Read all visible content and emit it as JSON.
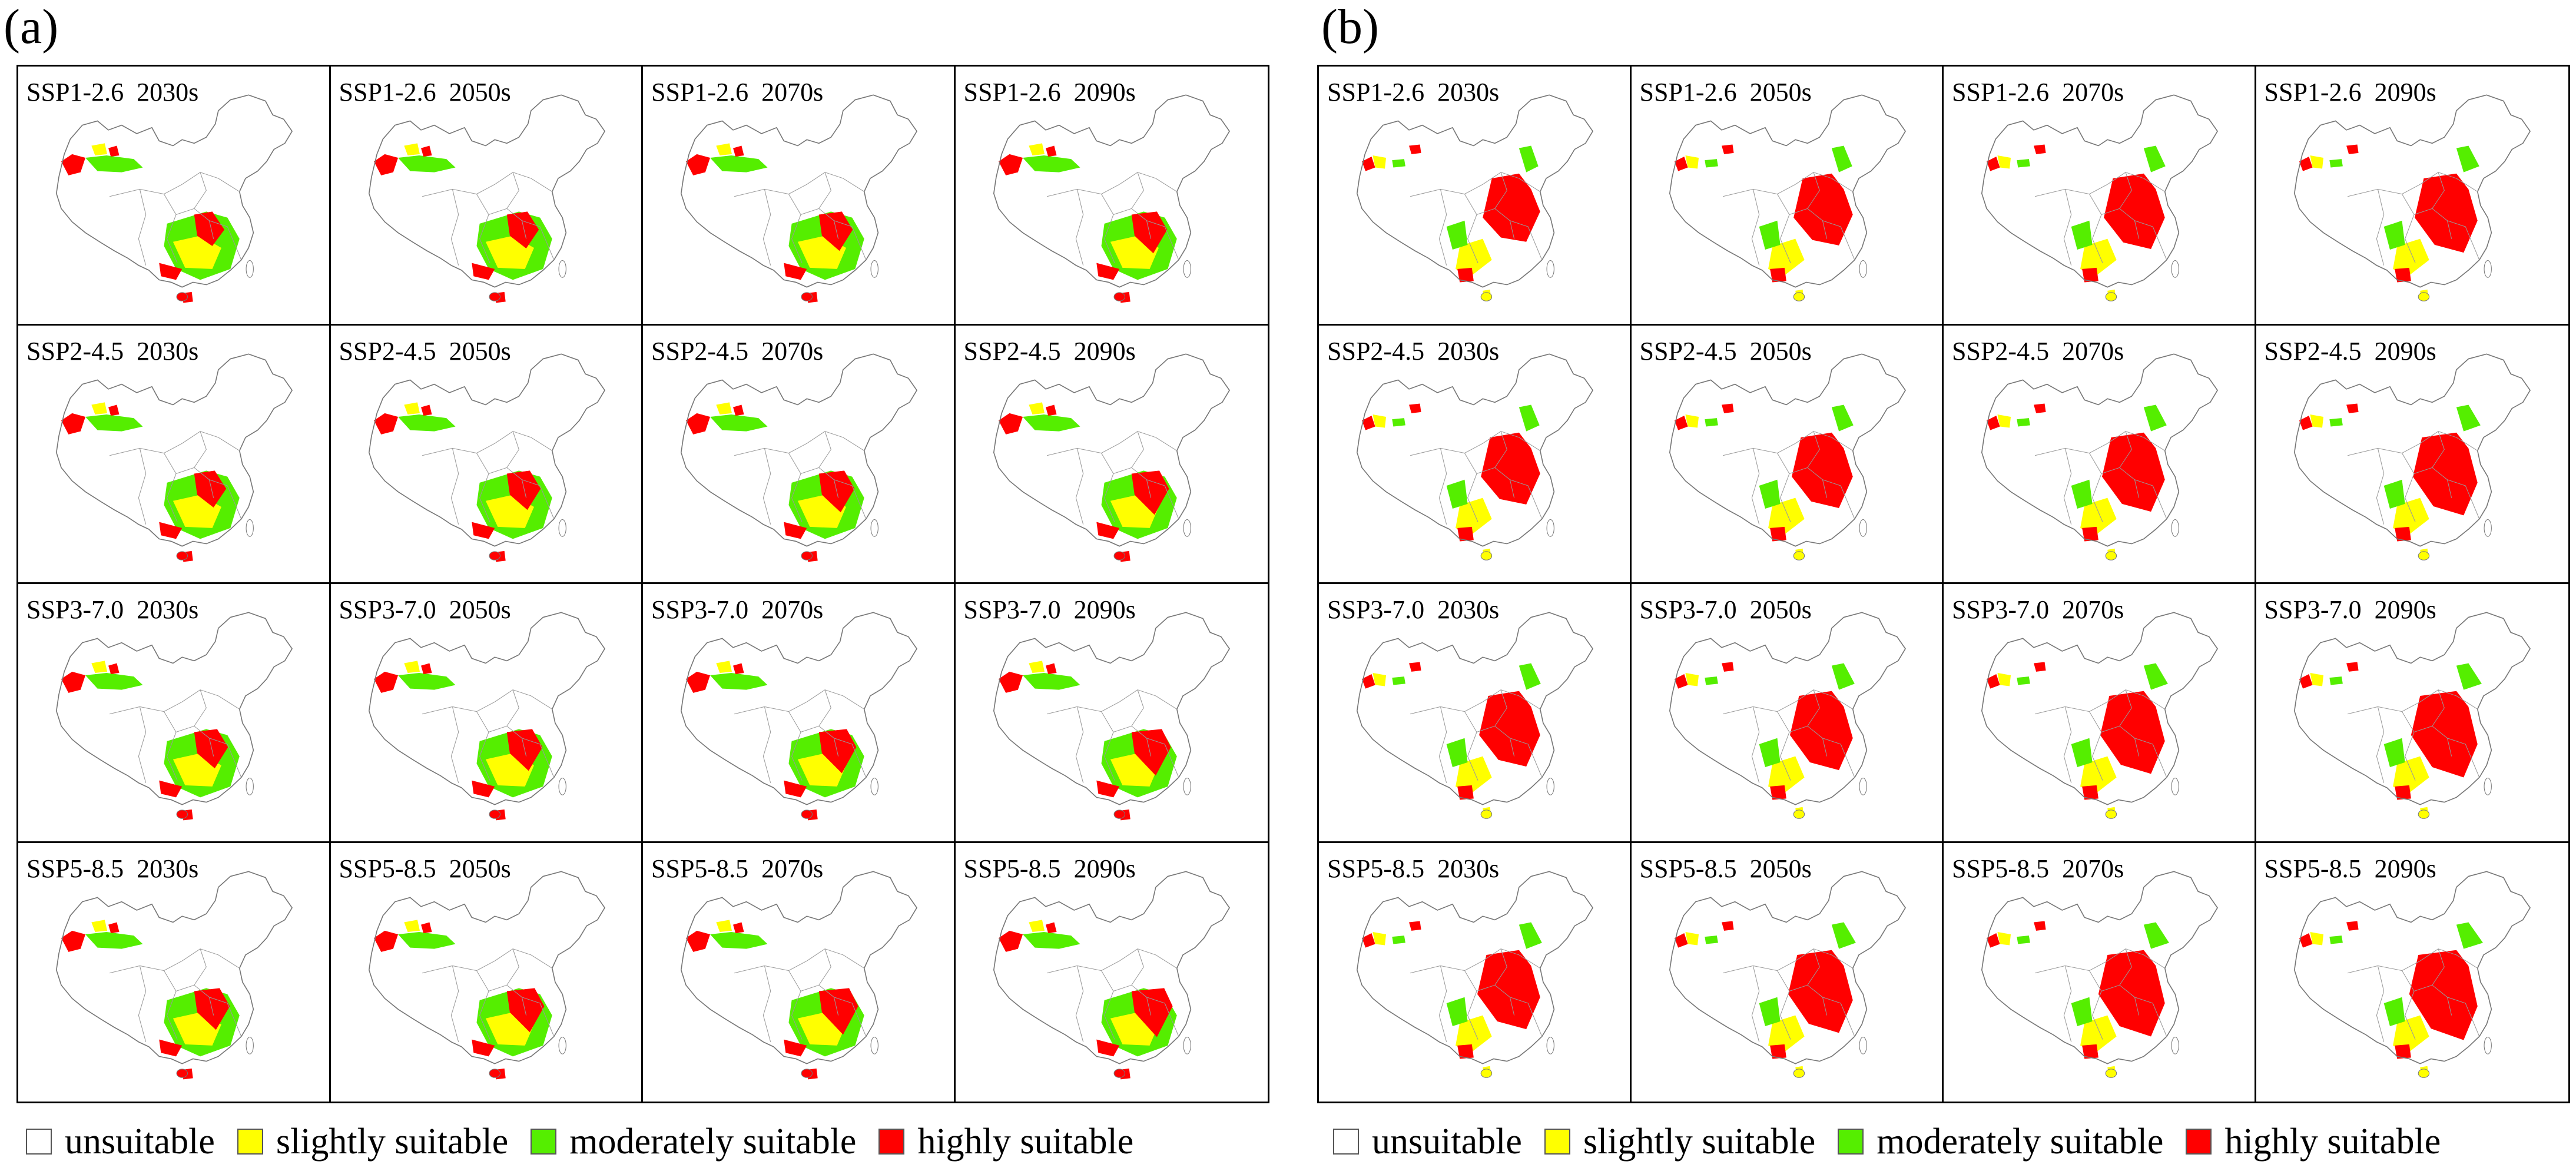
{
  "panels": [
    {
      "label": "(a)",
      "cells": [
        "SSP1-2.6  2030s",
        "SSP1-2.6  2050s",
        "SSP1-2.6  2070s",
        "SSP1-2.6  2090s",
        "SSP2-4.5  2030s",
        "SSP2-4.5  2050s",
        "SSP2-4.5  2070s",
        "SSP2-4.5  2090s",
        "SSP3-7.0  2030s",
        "SSP3-7.0  2050s",
        "SSP3-7.0  2070s",
        "SSP3-7.0  2090s",
        "SSP5-8.5  2030s",
        "SSP5-8.5  2050s",
        "SSP5-8.5  2070s",
        "SSP5-8.5  2090s"
      ]
    },
    {
      "label": "(b)",
      "cells": [
        "SSP1-2.6  2030s",
        "SSP1-2.6  2050s",
        "SSP1-2.6  2070s",
        "SSP1-2.6  2090s",
        "SSP2-4.5  2030s",
        "SSP2-4.5  2050s",
        "SSP2-4.5  2070s",
        "SSP2-4.5  2090s",
        "SSP3-7.0  2030s",
        "SSP3-7.0  2050s",
        "SSP3-7.0  2070s",
        "SSP3-7.0  2090s",
        "SSP5-8.5  2030s",
        "SSP5-8.5  2050s",
        "SSP5-8.5  2070s",
        "SSP5-8.5  2090s"
      ]
    }
  ],
  "legend": [
    {
      "label": "unsuitable",
      "color": "#ffffff"
    },
    {
      "label": "slightly suitable",
      "color": "#ffff00"
    },
    {
      "label": "moderately suitable",
      "color": "#55ee00"
    },
    {
      "label": "highly suitable",
      "color": "#ff0000"
    }
  ]
}
